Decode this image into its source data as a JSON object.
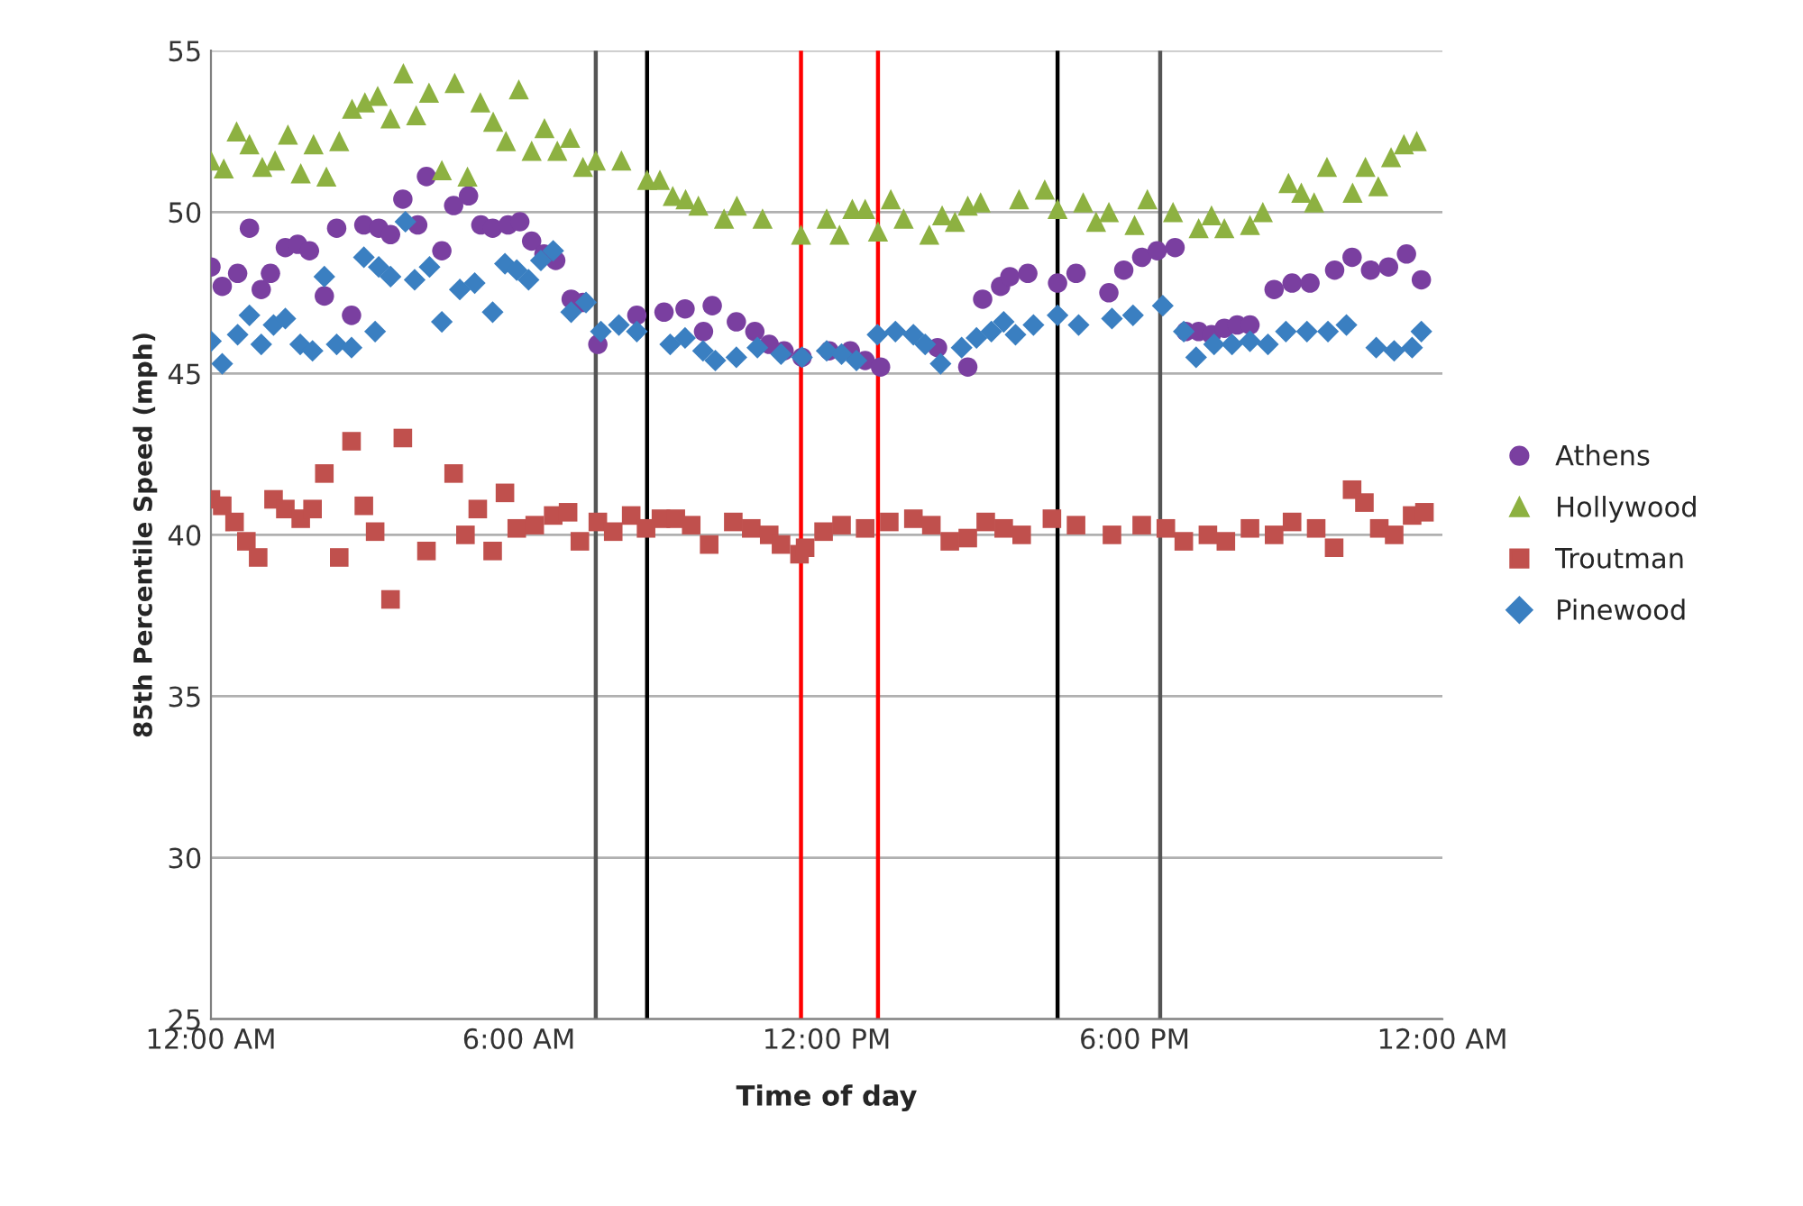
{
  "chart_data": {
    "type": "scatter",
    "xlabel": "Time of day",
    "ylabel": "85th Percentile Speed (mph)",
    "xlim": [
      0,
      24
    ],
    "xticks": [
      {
        "value": 0,
        "label": "12:00 AM"
      },
      {
        "value": 6,
        "label": "6:00 AM"
      },
      {
        "value": 12,
        "label": "12:00 PM"
      },
      {
        "value": 18,
        "label": "6:00 PM"
      },
      {
        "value": 24,
        "label": "12:00 AM"
      }
    ],
    "ylim": [
      25,
      55
    ],
    "yticks": [
      25,
      30,
      35,
      40,
      45,
      50,
      55
    ],
    "grid": "y",
    "legend": "right",
    "ref_lines": [
      {
        "axis": "x",
        "value": 7.5,
        "color": "#555555"
      },
      {
        "axis": "x",
        "value": 8.5,
        "color": "#000000"
      },
      {
        "axis": "x",
        "value": 11.5,
        "color": "#ff0000"
      },
      {
        "axis": "x",
        "value": 13,
        "color": "#ff0000"
      },
      {
        "axis": "x",
        "value": 16.5,
        "color": "#000000"
      },
      {
        "axis": "x",
        "value": 18.5,
        "color": "#555555"
      }
    ],
    "series": [
      {
        "name": "Athens",
        "color": "#7a3fa0",
        "marker": "circle",
        "x": [
          0,
          0.22,
          0.52,
          0.75,
          0.98,
          1.16,
          1.45,
          1.69,
          1.92,
          2.21,
          2.45,
          2.74,
          2.98,
          3.27,
          3.5,
          3.74,
          4.03,
          4.2,
          4.5,
          4.73,
          5.02,
          5.26,
          5.49,
          5.79,
          6.02,
          6.25,
          6.49,
          6.72,
          7.02,
          7.25,
          7.54,
          8.3,
          8.83,
          9.24,
          9.6,
          9.77,
          10.24,
          10.6,
          10.88,
          11.17,
          11.52,
          12.05,
          12.46,
          12.75,
          13.05,
          14.16,
          14.75,
          15.04,
          15.39,
          15.57,
          15.92,
          16.5,
          16.86,
          17.5,
          17.79,
          18.14,
          18.44,
          18.79,
          19.0,
          19.25,
          19.5,
          19.75,
          20.0,
          20.25,
          20.72,
          21.07,
          21.42,
          21.9,
          22.24,
          22.6,
          22.95,
          23.3,
          23.59
        ],
        "values": [
          48.3,
          47.7,
          48.1,
          49.5,
          47.6,
          48.1,
          48.9,
          49.0,
          48.8,
          47.4,
          49.5,
          46.8,
          49.6,
          49.5,
          49.3,
          50.4,
          49.6,
          51.1,
          48.8,
          50.2,
          50.5,
          49.6,
          49.5,
          49.6,
          49.7,
          49.1,
          48.7,
          48.5,
          47.3,
          47.2,
          45.9,
          46.8,
          46.9,
          47.0,
          46.3,
          47.1,
          46.6,
          46.3,
          45.9,
          45.7,
          45.5,
          45.7,
          45.7,
          45.4,
          45.2,
          45.8,
          45.2,
          47.3,
          47.7,
          48.0,
          48.1,
          47.8,
          48.1,
          47.5,
          48.2,
          48.6,
          48.8,
          48.9,
          46.3,
          46.3,
          46.2,
          46.4,
          46.5,
          46.5,
          47.6,
          47.8,
          47.8,
          48.2,
          48.6,
          48.2,
          48.3,
          48.7,
          47.9
        ]
      },
      {
        "name": "Hollywood",
        "color": "#8db141",
        "marker": "triangle",
        "x": [
          0,
          0.25,
          0.5,
          0.75,
          1,
          1.25,
          1.5,
          1.75,
          2,
          2.25,
          2.5,
          2.75,
          3,
          3.25,
          3.5,
          3.75,
          4,
          4.25,
          4.5,
          4.75,
          5,
          5.25,
          5.5,
          5.75,
          6,
          6.25,
          6.5,
          6.75,
          7,
          7.25,
          7.5,
          8,
          8.5,
          8.75,
          9,
          9.25,
          9.5,
          10,
          10.25,
          10.75,
          11.5,
          12,
          12.25,
          12.5,
          12.75,
          13,
          13.25,
          13.5,
          14,
          14.25,
          14.5,
          14.75,
          15,
          15.75,
          16.25,
          16.5,
          17,
          17.25,
          17.5,
          18,
          18.25,
          18.75,
          19.25,
          19.5,
          19.75,
          20.25,
          20.5,
          21,
          21.25,
          21.5,
          21.75,
          22.25,
          22.5,
          22.75,
          23,
          23.25,
          23.5
        ],
        "values": [
          51.6,
          51.35,
          52.5,
          52.1,
          51.4,
          51.6,
          52.4,
          51.2,
          52.1,
          51.1,
          52.2,
          53.2,
          53.4,
          53.6,
          52.9,
          54.3,
          53.0,
          53.7,
          51.3,
          54.0,
          51.1,
          53.4,
          52.8,
          52.2,
          53.8,
          51.9,
          52.6,
          51.9,
          52.3,
          51.4,
          51.6,
          51.6,
          51.0,
          51.0,
          50.5,
          50.4,
          50.2,
          49.8,
          50.2,
          49.8,
          49.3,
          49.8,
          49.3,
          50.1,
          50.1,
          49.4,
          50.4,
          49.8,
          49.3,
          49.9,
          49.7,
          50.2,
          50.3,
          50.4,
          50.7,
          50.1,
          50.3,
          49.7,
          50.0,
          49.6,
          50.4,
          50.0,
          49.5,
          49.9,
          49.5,
          49.6,
          50.0,
          50.9,
          50.6,
          50.3,
          51.4,
          50.6,
          51.4,
          50.8,
          51.7,
          52.1,
          52.2
        ]
      },
      {
        "name": "Troutman",
        "color": "#c0504d",
        "marker": "square",
        "x": [
          0,
          0.22,
          0.46,
          0.69,
          0.92,
          1.22,
          1.45,
          1.75,
          1.98,
          2.21,
          2.5,
          2.74,
          2.98,
          3.2,
          3.5,
          3.74,
          4.2,
          4.73,
          4.96,
          5.2,
          5.49,
          5.73,
          5.96,
          6.31,
          6.67,
          6.96,
          7.19,
          7.54,
          7.84,
          8.19,
          8.48,
          8.77,
          9.06,
          9.36,
          9.71,
          10.18,
          10.53,
          10.88,
          11.11,
          11.47,
          11.58,
          11.94,
          12.29,
          12.75,
          13.22,
          13.69,
          14.04,
          14.4,
          14.75,
          15.1,
          15.45,
          15.8,
          16.39,
          16.86,
          17.56,
          18.14,
          18.61,
          18.96,
          19.43,
          19.78,
          20.25,
          20.72,
          21.07,
          21.54,
          21.89,
          22.24,
          22.48,
          22.77,
          23.06,
          23.41,
          23.65
        ],
        "values": [
          41.1,
          40.9,
          40.4,
          39.8,
          39.3,
          41.1,
          40.8,
          40.5,
          40.8,
          41.9,
          39.3,
          42.9,
          40.9,
          40.1,
          38.0,
          43.0,
          39.5,
          41.9,
          40.0,
          40.8,
          39.5,
          41.3,
          40.2,
          40.3,
          40.6,
          40.7,
          39.8,
          40.4,
          40.1,
          40.6,
          40.2,
          40.5,
          40.5,
          40.3,
          39.7,
          40.4,
          40.2,
          40.0,
          39.7,
          39.4,
          39.6,
          40.1,
          40.3,
          40.2,
          40.4,
          40.5,
          40.3,
          39.8,
          39.9,
          40.4,
          40.2,
          40.0,
          40.5,
          40.3,
          40.0,
          40.3,
          40.2,
          39.8,
          40.0,
          39.8,
          40.2,
          40.0,
          40.4,
          40.2,
          39.6,
          41.4,
          41.0,
          40.2,
          40.0,
          40.6,
          40.7
        ]
      },
      {
        "name": "Pinewood",
        "color": "#3a7fc1",
        "marker": "diamond",
        "x": [
          0,
          0.22,
          0.52,
          0.75,
          0.98,
          1.22,
          1.45,
          1.74,
          1.98,
          2.21,
          2.45,
          2.74,
          2.98,
          3.2,
          3.27,
          3.5,
          3.79,
          3.97,
          4.26,
          4.5,
          4.85,
          5.14,
          5.49,
          5.73,
          5.96,
          6.19,
          6.43,
          6.67,
          7.02,
          7.31,
          7.6,
          7.95,
          8.3,
          8.95,
          9.24,
          9.59,
          9.83,
          10.24,
          10.65,
          11.11,
          11.52,
          12.0,
          12.29,
          12.58,
          12.99,
          13.34,
          13.69,
          13.92,
          14.22,
          14.63,
          14.92,
          15.21,
          15.45,
          15.68,
          16.03,
          16.5,
          16.91,
          17.56,
          17.97,
          18.55,
          18.96,
          19.2,
          19.55,
          19.9,
          20.25,
          20.6,
          20.95,
          21.36,
          21.77,
          22.13,
          22.71,
          23.06,
          23.41,
          23.59
        ],
        "values": [
          46.0,
          45.3,
          46.2,
          46.8,
          45.9,
          46.5,
          46.7,
          45.9,
          45.7,
          48.0,
          45.9,
          45.8,
          48.6,
          46.3,
          48.3,
          48.0,
          49.7,
          47.9,
          48.3,
          46.6,
          47.6,
          47.8,
          46.9,
          48.4,
          48.2,
          47.9,
          48.5,
          48.8,
          46.9,
          47.2,
          46.3,
          46.5,
          46.3,
          45.9,
          46.1,
          45.7,
          45.4,
          45.5,
          45.8,
          45.6,
          45.5,
          45.7,
          45.6,
          45.4,
          46.2,
          46.3,
          46.2,
          45.9,
          45.3,
          45.8,
          46.1,
          46.3,
          46.6,
          46.2,
          46.5,
          46.8,
          46.5,
          46.7,
          46.8,
          47.1,
          46.3,
          45.5,
          45.9,
          45.9,
          46.0,
          45.9,
          46.3,
          46.3,
          46.3,
          46.5,
          45.8,
          45.7,
          45.8,
          46.3
        ]
      }
    ]
  }
}
